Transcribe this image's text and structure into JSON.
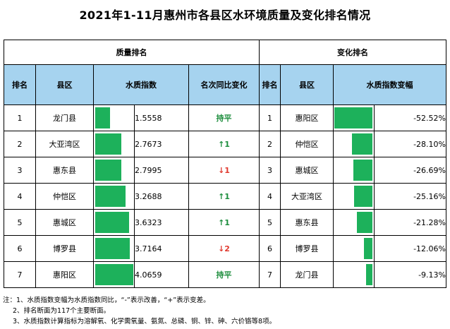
{
  "title": "2021年1-11月惠州市各县区水环境质量及变化排名情况",
  "groups": {
    "quality": "质量排名",
    "change": "变化排名"
  },
  "headers": {
    "rank": "排名",
    "county": "县区",
    "index": "水质指数",
    "yoy": "名次同比变化",
    "rank2": "排名",
    "county2": "县区",
    "change_rate": "水质指数变幅"
  },
  "left_rows": [
    {
      "rank": "1",
      "county": "龙门县",
      "index": "1.5558",
      "value": 1.5558,
      "change": "持平",
      "dir": "flat"
    },
    {
      "rank": "2",
      "county": "大亚湾区",
      "index": "2.7673",
      "value": 2.7673,
      "change": "↑1",
      "dir": "up"
    },
    {
      "rank": "3",
      "county": "惠东县",
      "index": "2.7995",
      "value": 2.7995,
      "change": "↓1",
      "dir": "down"
    },
    {
      "rank": "4",
      "county": "仲恺区",
      "index": "3.2688",
      "value": 3.2688,
      "change": "↑1",
      "dir": "up"
    },
    {
      "rank": "5",
      "county": "惠城区",
      "index": "3.6323",
      "value": 3.6323,
      "change": "↑1",
      "dir": "up"
    },
    {
      "rank": "6",
      "county": "博罗县",
      "index": "3.7164",
      "value": 3.7164,
      "change": "↓2",
      "dir": "down"
    },
    {
      "rank": "7",
      "county": "惠阳区",
      "index": "4.0659",
      "value": 4.0659,
      "change": "持平",
      "dir": "flat"
    }
  ],
  "right_rows": [
    {
      "rank": "1",
      "county": "惠阳区",
      "pct": "-52.52%",
      "value": -52.52
    },
    {
      "rank": "2",
      "county": "仲恺区",
      "pct": "-28.10%",
      "value": -28.1
    },
    {
      "rank": "3",
      "county": "惠城区",
      "pct": "-26.69%",
      "value": -26.69
    },
    {
      "rank": "4",
      "county": "大亚湾区",
      "pct": "-25.16%",
      "value": -25.16
    },
    {
      "rank": "5",
      "county": "惠东县",
      "pct": "-21.28%",
      "value": -21.28
    },
    {
      "rank": "6",
      "county": "博罗县",
      "pct": "-12.06%",
      "value": -12.06
    },
    {
      "rank": "7",
      "county": "龙门县",
      "pct": "-9.13%",
      "value": -9.13
    }
  ],
  "notes": [
    "注：1、水质指数变幅为水质指数同比，“-”表示改善，“+”表示变差。",
    "2、排名断面为117个主要断面。",
    "3、水质指数计算指标为溶解氧、化学需氧量、氨氮、总磷、铜、锌、砷、六价铬等8项。"
  ],
  "colors": {
    "header_bg": "#a6d3ef",
    "bar": "#1db15b",
    "up": "#1e8e3e",
    "down": "#e03a2f"
  }
}
